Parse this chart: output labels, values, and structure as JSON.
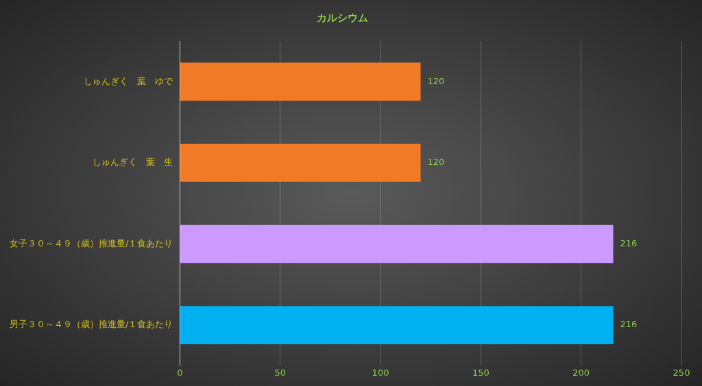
{
  "chart_data": {
    "type": "bar",
    "orientation": "horizontal",
    "title": "カルシウム",
    "categories": [
      "しゅんぎく　葉　ゆで",
      "しゅんぎく　葉　生",
      "女子３０～４９（歳）推進量/１食あたり",
      "男子３０～４９（歳）推進量/１食あたり"
    ],
    "values": [
      120,
      120,
      216,
      216
    ],
    "colors": [
      "#f07a26",
      "#f07a26",
      "#cc99ff",
      "#00b0f0"
    ],
    "xlim": [
      0,
      250
    ],
    "xticks": [
      0,
      50,
      100,
      150,
      200,
      250
    ],
    "grid": "x",
    "data_labels": true,
    "legend": false
  }
}
